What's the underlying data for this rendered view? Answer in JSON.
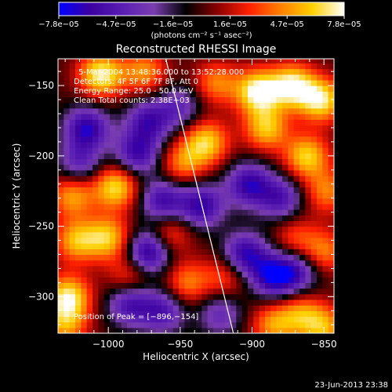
{
  "chart_data": {
    "type": "heatmap",
    "title": "Reconstructed RHESSI Image",
    "xlabel": "Heliocentric X (arcsec)",
    "ylabel": "Heliocentric Y (arcsec)",
    "xlim": [
      -1035,
      -843
    ],
    "ylim": [
      -326,
      -131
    ],
    "x_ticks": [
      {
        "value": -1000,
        "label": "−1000"
      },
      {
        "value": -950,
        "label": "−950"
      },
      {
        "value": -900,
        "label": "−900"
      },
      {
        "value": -850,
        "label": "−850"
      }
    ],
    "y_ticks": [
      {
        "value": -150,
        "label": "−150"
      },
      {
        "value": -200,
        "label": "−200"
      },
      {
        "value": -250,
        "label": "−250"
      },
      {
        "value": -300,
        "label": "−300"
      }
    ],
    "colorbar": {
      "min": -7.8e-05,
      "max": 7.8e-05,
      "tick_labels": [
        "−7.8e−05",
        "−4.7e−05",
        "−1.6e−05",
        "1.6e−05",
        "4.7e−05",
        "7.8e−05"
      ],
      "label": "(photons cm⁻² s⁻¹ asec⁻²)",
      "colormap": [
        "#0000ff",
        "#3c00a0",
        "#5a1eb4",
        "#7a3db0",
        "#000000",
        "#8a0000",
        "#ff2000",
        "#ff8000",
        "#ffd000",
        "#ffffff"
      ]
    },
    "annotations": {
      "time_range": "5-Mar-2004 13:48:36.000 to 13:52:28.000",
      "detectors": "Detectors: 4F 5F 6F 7F 8F, Att 0",
      "energy_range": "Energy Range: 25.0 - 50.0 keV",
      "clean_counts": "Clean    Total counts: 2.38E+03",
      "peak_position": "Position of Peak = [−896,−154]"
    },
    "limb_line": {
      "x": [
        -960,
        -913
      ],
      "y": [
        -131,
        -326
      ]
    },
    "intensity_sources": [
      {
        "x": -1005,
        "y": -142,
        "v": 0.95
      },
      {
        "x": -975,
        "y": -140,
        "v": 0.6
      },
      {
        "x": -925,
        "y": -148,
        "v": 0.55
      },
      {
        "x": -896,
        "y": -154,
        "v": 1.0
      },
      {
        "x": -872,
        "y": -150,
        "v": 0.95
      },
      {
        "x": -852,
        "y": -160,
        "v": 0.9
      },
      {
        "x": -890,
        "y": -180,
        "v": 0.75
      },
      {
        "x": -862,
        "y": -200,
        "v": 0.8
      },
      {
        "x": -848,
        "y": -225,
        "v": 0.55
      },
      {
        "x": -932,
        "y": -190,
        "v": 0.8
      },
      {
        "x": -948,
        "y": -205,
        "v": 0.55
      },
      {
        "x": -1025,
        "y": -228,
        "v": 0.65
      },
      {
        "x": -1022,
        "y": -260,
        "v": 0.7
      },
      {
        "x": -995,
        "y": -222,
        "v": 0.85
      },
      {
        "x": -1000,
        "y": -258,
        "v": 0.75
      },
      {
        "x": -1028,
        "y": -300,
        "v": 0.9
      },
      {
        "x": -1030,
        "y": -320,
        "v": 0.6
      },
      {
        "x": -985,
        "y": -285,
        "v": 0.45
      },
      {
        "x": -958,
        "y": -255,
        "v": 0.5
      },
      {
        "x": -945,
        "y": -290,
        "v": 0.55
      },
      {
        "x": -918,
        "y": -285,
        "v": 0.45
      },
      {
        "x": -870,
        "y": -258,
        "v": 0.4
      },
      {
        "x": -850,
        "y": -268,
        "v": 0.55
      },
      {
        "x": -866,
        "y": -312,
        "v": 0.55
      },
      {
        "x": -885,
        "y": -320,
        "v": 0.6
      },
      {
        "x": -850,
        "y": -322,
        "v": 0.65
      },
      {
        "x": -1015,
        "y": -180,
        "v": -0.85
      },
      {
        "x": -972,
        "y": -175,
        "v": -0.7
      },
      {
        "x": -980,
        "y": -198,
        "v": -0.75
      },
      {
        "x": -950,
        "y": -165,
        "v": -0.5
      },
      {
        "x": -962,
        "y": -232,
        "v": -0.75
      },
      {
        "x": -972,
        "y": -268,
        "v": -0.95
      },
      {
        "x": -985,
        "y": -305,
        "v": -0.7
      },
      {
        "x": -962,
        "y": -310,
        "v": -0.65
      },
      {
        "x": -935,
        "y": -235,
        "v": -0.8
      },
      {
        "x": -902,
        "y": -220,
        "v": -0.8
      },
      {
        "x": -880,
        "y": -230,
        "v": -0.65
      },
      {
        "x": -905,
        "y": -270,
        "v": -0.85
      },
      {
        "x": -885,
        "y": -285,
        "v": -0.9
      },
      {
        "x": -868,
        "y": -282,
        "v": -0.6
      },
      {
        "x": -922,
        "y": -312,
        "v": -0.5
      },
      {
        "x": -1020,
        "y": -205,
        "v": -0.55
      }
    ]
  },
  "footer": {
    "timestamp": "23-Jun-2013 23:38"
  }
}
